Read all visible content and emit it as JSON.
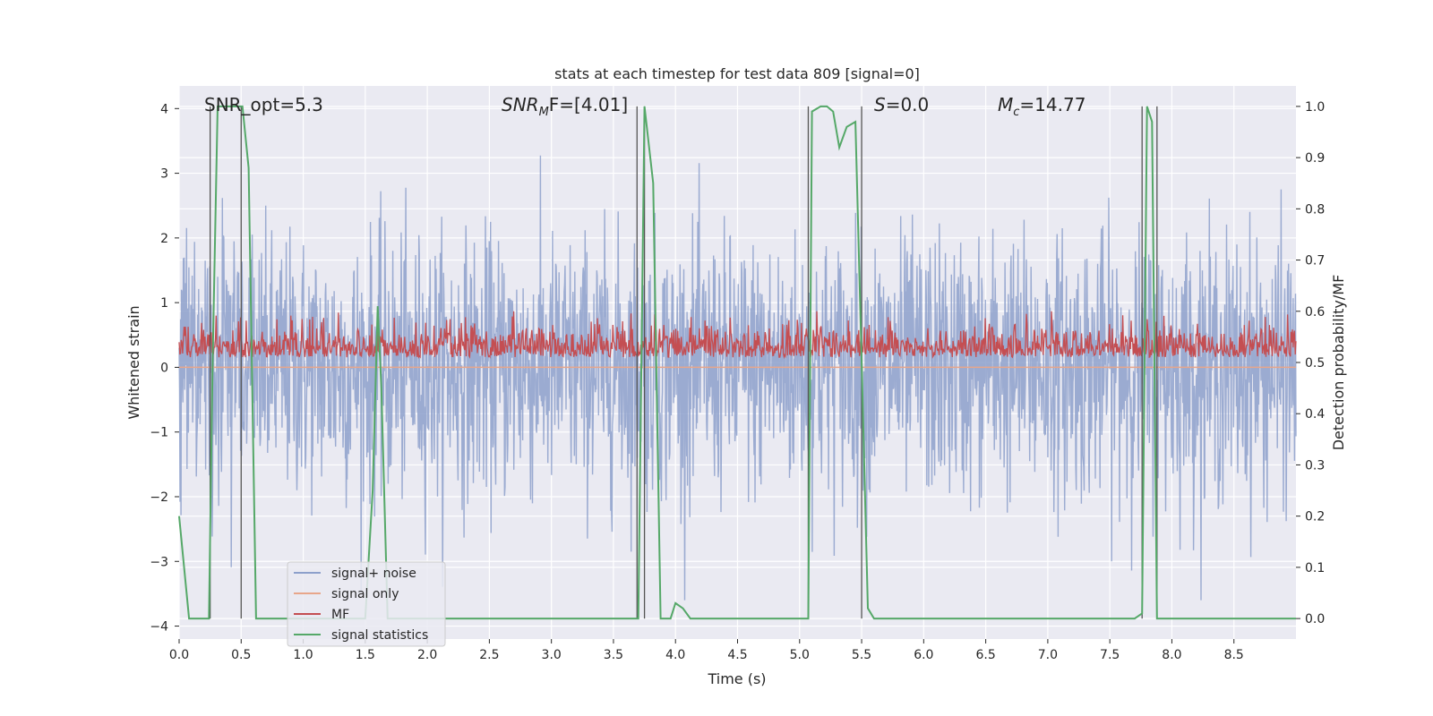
{
  "chart_data": {
    "type": "line",
    "title": "stats at each timestep for test data 809 [signal=0]",
    "xlabel": "Time (s)",
    "ylabel_left": "Whitened strain",
    "ylabel_right": "Detection probability/MF",
    "xlim": [
      0.0,
      9.0
    ],
    "ylim_left": [
      -4.2,
      4.35
    ],
    "ylim_right": [
      -0.04,
      1.04
    ],
    "x_ticks": [
      0.0,
      0.5,
      1.0,
      1.5,
      2.0,
      2.5,
      3.0,
      3.5,
      4.0,
      4.5,
      5.0,
      5.5,
      6.0,
      6.5,
      7.0,
      7.5,
      8.0,
      8.5
    ],
    "x_tick_labels": [
      "0.0",
      "0.5",
      "1.0",
      "1.5",
      "2.0",
      "2.5",
      "3.0",
      "3.5",
      "4.0",
      "4.5",
      "5.0",
      "5.5",
      "6.0",
      "6.5",
      "7.0",
      "7.5",
      "8.0",
      "8.5"
    ],
    "y_ticks_left": [
      -4,
      -3,
      -2,
      -1,
      0,
      1,
      2,
      3,
      4
    ],
    "y_tick_labels_left": [
      "−4",
      "−3",
      "−2",
      "−1",
      "0",
      "1",
      "2",
      "3",
      "4"
    ],
    "y_ticks_right": [
      0.0,
      0.1,
      0.2,
      0.3,
      0.4,
      0.5,
      0.6,
      0.7,
      0.8,
      0.9,
      1.0
    ],
    "y_tick_labels_right": [
      "0.0",
      "0.1",
      "0.2",
      "0.3",
      "0.4",
      "0.5",
      "0.6",
      "0.7",
      "0.8",
      "0.9",
      "1.0"
    ],
    "annotations": {
      "snr_opt": "SNR_opt=5.3",
      "snr_mf_main": "SNR",
      "snr_mf_sub": "M",
      "snr_mf_rest": "F=[4.01]",
      "s_main": "S",
      "s_rest": "=0.0",
      "mc_main": "M",
      "mc_sub": "c",
      "mc_rest": "=14.77"
    },
    "legend": [
      {
        "label": "signal+ noise",
        "color": "#8da0cb"
      },
      {
        "label": "signal only",
        "color": "#e8a68a"
      },
      {
        "label": "MF",
        "color": "#c44e52"
      },
      {
        "label": "signal statistics",
        "color": "#55a868"
      }
    ],
    "series": [
      {
        "name": "signal statistics",
        "axis": "right",
        "color": "#55a868",
        "x": [
          0.0,
          0.08,
          0.15,
          0.24,
          0.27,
          0.31,
          0.35,
          0.45,
          0.51,
          0.56,
          0.62,
          0.7,
          1.4,
          1.5,
          1.56,
          1.6,
          1.63,
          1.68,
          1.75,
          3.6,
          3.66,
          3.7,
          3.75,
          3.82,
          3.88,
          3.96,
          4.0,
          4.06,
          4.12,
          4.3,
          5.0,
          5.07,
          5.1,
          5.17,
          5.22,
          5.27,
          5.32,
          5.38,
          5.45,
          5.5,
          5.55,
          5.6,
          5.7,
          7.7,
          7.76,
          7.8,
          7.84,
          7.88,
          7.93,
          8.0,
          9.0
        ],
        "values": [
          0.2,
          0.0,
          0.0,
          0.0,
          0.5,
          1.0,
          1.0,
          1.0,
          1.0,
          0.88,
          0.0,
          0.0,
          0.0,
          0.0,
          0.25,
          0.61,
          0.45,
          0.0,
          0.0,
          0.0,
          0.0,
          0.0,
          1.0,
          0.85,
          0.0,
          0.0,
          0.03,
          0.02,
          0.0,
          0.0,
          0.0,
          0.0,
          0.99,
          1.0,
          1.0,
          0.99,
          0.92,
          0.96,
          0.97,
          0.5,
          0.02,
          0.0,
          0.0,
          0.0,
          0.01,
          1.0,
          0.97,
          0.0,
          0.0,
          0.0,
          0.0
        ]
      },
      {
        "name": "signal+ noise",
        "axis": "left",
        "color": "#8da0cb",
        "description_range": [
          -3.6,
          3.9
        ]
      },
      {
        "name": "MF",
        "axis": "right",
        "color": "#c44e52",
        "description_range": [
          0.49,
          0.6
        ]
      },
      {
        "name": "signal only",
        "axis": "left",
        "color": "#e8a68a",
        "values_constant": 0.0
      }
    ],
    "vertical_lines": [
      0.25,
      0.5,
      3.69,
      3.75,
      5.07,
      5.5,
      7.76,
      7.88
    ],
    "legend_position": "lower-left",
    "grid": true
  }
}
